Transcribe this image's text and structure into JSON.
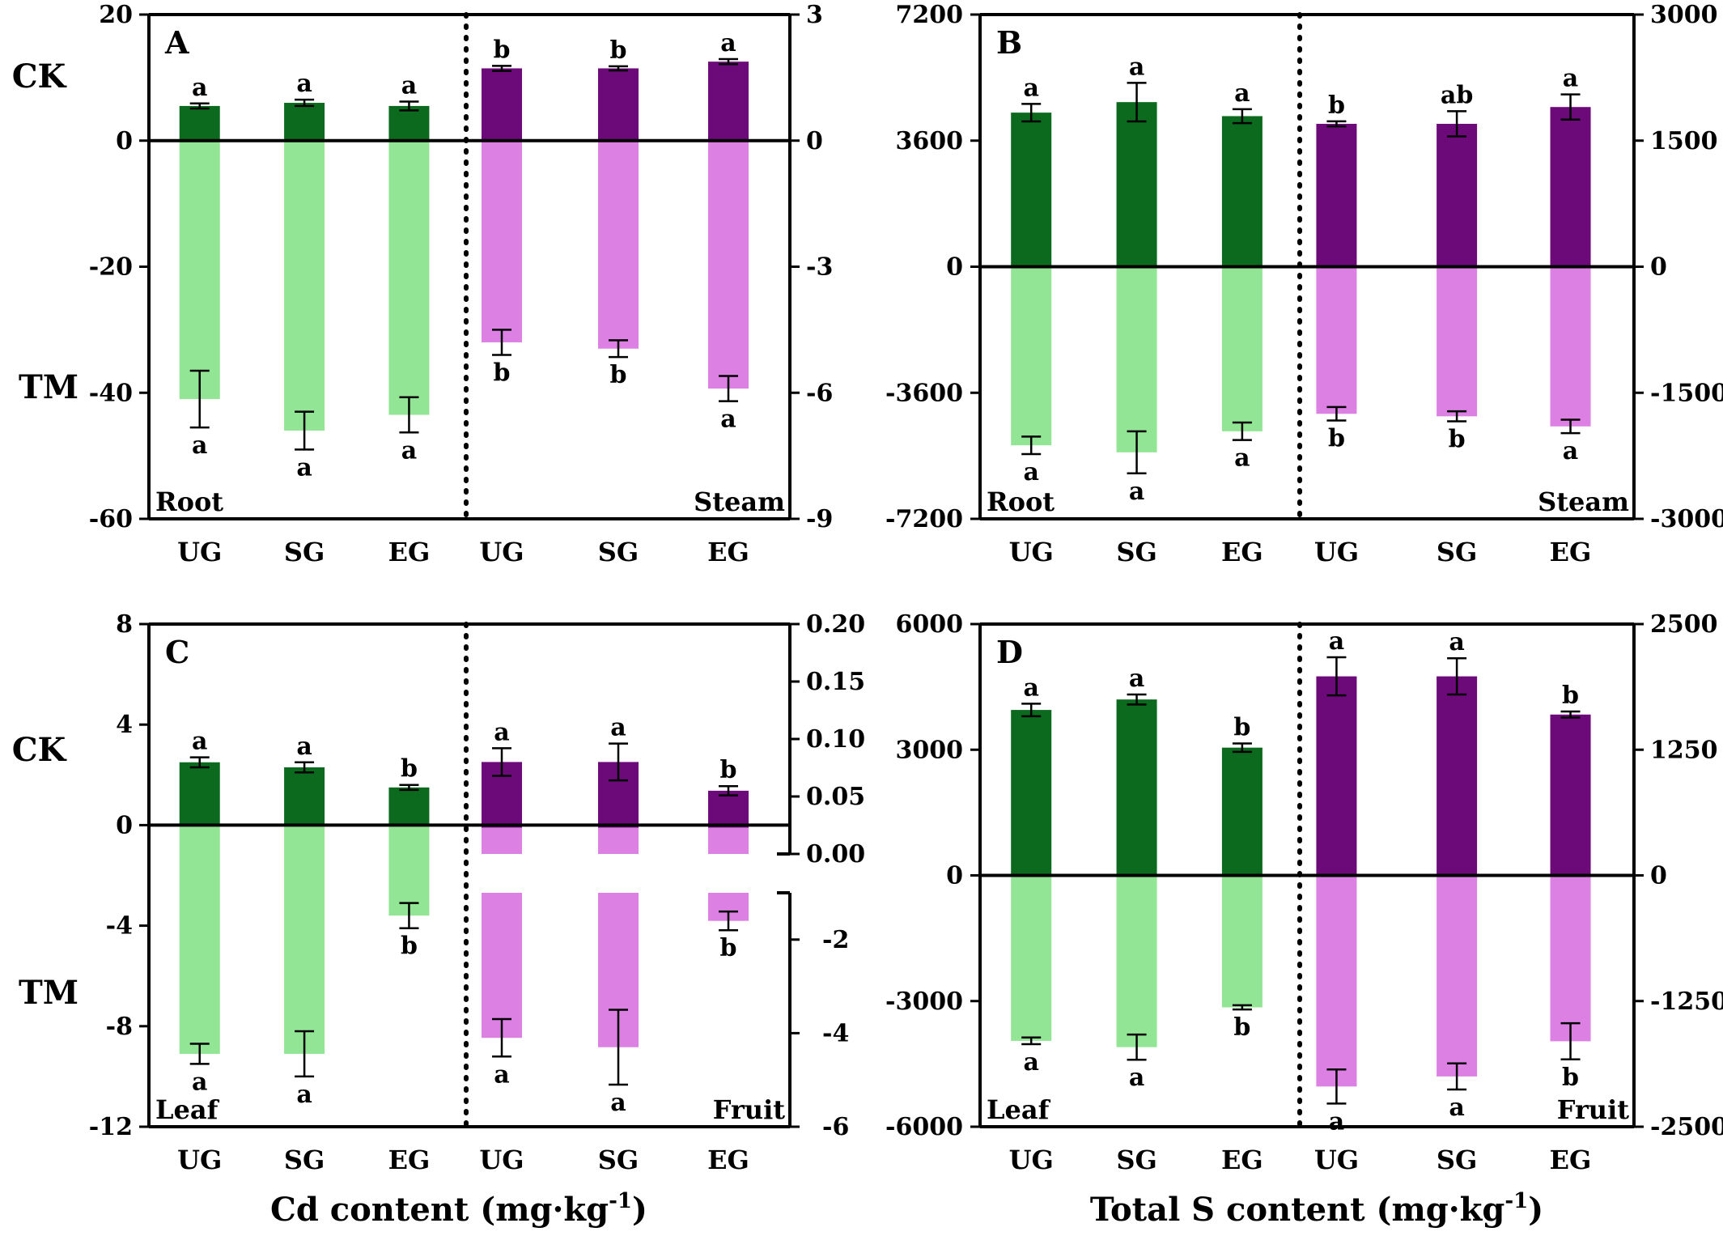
{
  "row_labels": {
    "ck": "CK",
    "tm": "TM"
  },
  "colors": {
    "ck_left": "#0c6a1e",
    "tm_left": "#92e594",
    "ck_right": "#6c0a7a",
    "tm_right": "#dc80e3"
  },
  "chart_data": [
    {
      "panel": "A",
      "type": "bar",
      "categories": [
        "UG",
        "SG",
        "EG"
      ],
      "left_label": "Root",
      "right_label": "Steam",
      "left_axis": {
        "ylim": [
          -60,
          20
        ],
        "ticks": [
          20,
          0,
          -20,
          -40,
          -60
        ]
      },
      "right_axis": {
        "ylim": [
          -9,
          3
        ],
        "ticks": [
          3,
          0,
          -3,
          -6,
          -9
        ]
      },
      "left": {
        "ck": {
          "values": [
            5.5,
            6,
            5.5
          ],
          "errors": [
            0.4,
            0.5,
            0.7
          ],
          "letters": [
            "a",
            "a",
            "a"
          ]
        },
        "tm": {
          "values": [
            -41,
            -46,
            -43.5
          ],
          "errors": [
            4.5,
            3,
            2.8
          ],
          "letters": [
            "a",
            "a",
            "a"
          ]
        }
      },
      "right": {
        "ck": {
          "values": [
            1.72,
            1.72,
            1.88
          ],
          "errors": [
            0.06,
            0.05,
            0.06
          ],
          "letters": [
            "b",
            "b",
            "a"
          ]
        },
        "tm": {
          "values": [
            -4.8,
            -4.95,
            -5.9
          ],
          "errors": [
            0.3,
            0.2,
            0.3
          ],
          "letters": [
            "b",
            "b",
            "a"
          ]
        }
      }
    },
    {
      "panel": "B",
      "type": "bar",
      "categories": [
        "UG",
        "SG",
        "EG"
      ],
      "left_label": "Root",
      "right_label": "Steam",
      "left_axis": {
        "ylim": [
          -7200,
          7200
        ],
        "ticks": [
          7200,
          3600,
          0,
          -3600,
          -7200
        ]
      },
      "right_axis": {
        "ylim": [
          -3000,
          3000
        ],
        "ticks": [
          3000,
          1500,
          0,
          -1500,
          -3000
        ]
      },
      "left": {
        "ck": {
          "values": [
            4400,
            4700,
            4300
          ],
          "errors": [
            250,
            550,
            200
          ],
          "letters": [
            "a",
            "a",
            "a"
          ]
        },
        "tm": {
          "values": [
            -5100,
            -5300,
            -4700
          ],
          "errors": [
            250,
            600,
            250
          ],
          "letters": [
            "a",
            "a",
            "a"
          ]
        }
      },
      "right": {
        "ck": {
          "values": [
            1700,
            1700,
            1900
          ],
          "errors": [
            30,
            150,
            150
          ],
          "letters": [
            "b",
            "ab",
            "a"
          ]
        },
        "tm": {
          "values": [
            -1750,
            -1780,
            -1900
          ],
          "errors": [
            80,
            60,
            80
          ],
          "letters": [
            "b",
            "b",
            "a"
          ]
        }
      }
    },
    {
      "panel": "C",
      "type": "bar",
      "categories": [
        "UG",
        "SG",
        "EG"
      ],
      "left_label": "Leaf",
      "right_label": "Fruit",
      "left_axis": {
        "ylim": [
          -12,
          8
        ],
        "ticks": [
          8,
          4,
          0,
          -4,
          -8,
          -12
        ]
      },
      "right_axis": {
        "upper": {
          "ylim": [
            0,
            0.2
          ],
          "ticks": [
            0.2,
            0.15,
            0.1,
            0.05,
            0.0
          ],
          "tick_labels": [
            "0.20",
            "0.15",
            "0.10",
            "0.05",
            "0.00"
          ]
        },
        "lower": {
          "ylim": [
            -6,
            -1
          ],
          "ticks": [
            -2,
            -4,
            -6
          ]
        }
      },
      "left": {
        "ck": {
          "values": [
            2.5,
            2.3,
            1.5
          ],
          "errors": [
            0.2,
            0.2,
            0.1
          ],
          "letters": [
            "a",
            "a",
            "b"
          ]
        },
        "tm": {
          "values": [
            -9.1,
            -9.1,
            -3.6
          ],
          "errors": [
            0.4,
            0.9,
            0.5
          ],
          "letters": [
            "a",
            "a",
            "b"
          ]
        }
      },
      "right": {
        "ck": {
          "values": [
            0.08,
            0.08,
            0.055
          ],
          "errors": [
            0.012,
            0.016,
            0.004
          ],
          "letters": [
            "a",
            "a",
            "b"
          ]
        },
        "tm": {
          "values": [
            -4.1,
            -4.3,
            -1.6
          ],
          "errors": [
            0.4,
            0.8,
            0.2
          ],
          "letters": [
            "a",
            "a",
            "b"
          ]
        }
      }
    },
    {
      "panel": "D",
      "type": "bar",
      "categories": [
        "UG",
        "SG",
        "EG"
      ],
      "left_label": "Leaf",
      "right_label": "Fruit",
      "left_axis": {
        "ylim": [
          -6000,
          6000
        ],
        "ticks": [
          6000,
          3000,
          0,
          -3000,
          -6000
        ]
      },
      "right_axis": {
        "ylim": [
          -2500,
          2500
        ],
        "ticks": [
          2500,
          1250,
          0,
          -1250,
          -2500
        ]
      },
      "left": {
        "ck": {
          "values": [
            3950,
            4200,
            3050
          ],
          "errors": [
            150,
            120,
            100
          ],
          "letters": [
            "a",
            "a",
            "b"
          ]
        },
        "tm": {
          "values": [
            -3950,
            -4100,
            -3150
          ],
          "errors": [
            80,
            300,
            50
          ],
          "letters": [
            "a",
            "a",
            "b"
          ]
        }
      },
      "right": {
        "ck": {
          "values": [
            1980,
            1980,
            1600
          ],
          "errors": [
            190,
            180,
            30
          ],
          "letters": [
            "a",
            "a",
            "b"
          ]
        },
        "tm": {
          "values": [
            -2100,
            -2000,
            -1650
          ],
          "errors": [
            170,
            130,
            180
          ],
          "letters": [
            "a",
            "a",
            "b"
          ]
        }
      }
    }
  ],
  "x_titles": {
    "left": {
      "main": "Cd content (mg·kg",
      "exp": "-1",
      "close": ")"
    },
    "right": {
      "main": "Total S content (mg·kg",
      "exp": "-1",
      "close": ")"
    }
  }
}
